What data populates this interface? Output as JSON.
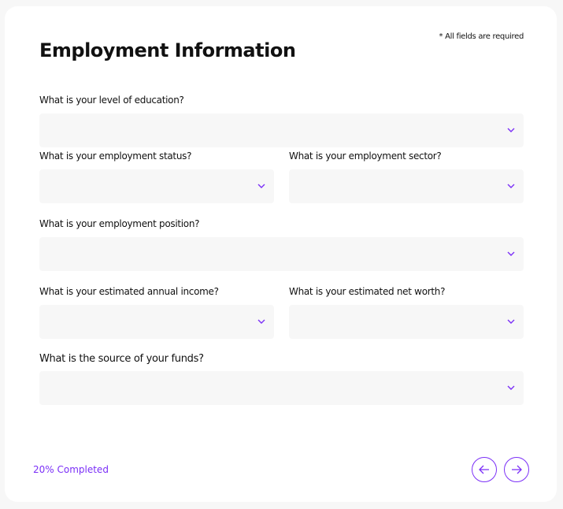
{
  "header": {
    "title": "Employment Information",
    "required_note": "* All fields are required"
  },
  "fields": [
    {
      "label": "What is your level of education?",
      "value": ""
    },
    {
      "label": "What is your employment status?",
      "value": ""
    },
    {
      "label": "What is your employment sector?",
      "value": ""
    },
    {
      "label": "What is your employment position?",
      "value": ""
    },
    {
      "label": "What is your estimated annual income?",
      "value": ""
    },
    {
      "label": "What is your estimated net worth?",
      "value": ""
    },
    {
      "label": "What is the source of your funds?",
      "value": ""
    }
  ],
  "footer": {
    "progress_text": "20% Completed",
    "progress_percent": 20
  },
  "colors": {
    "accent": "#7b2ff7",
    "field_bg": "#f7f7f7"
  },
  "icons": {
    "select": "chevron-down-icon",
    "back": "arrow-left-icon",
    "next": "arrow-right-icon"
  }
}
